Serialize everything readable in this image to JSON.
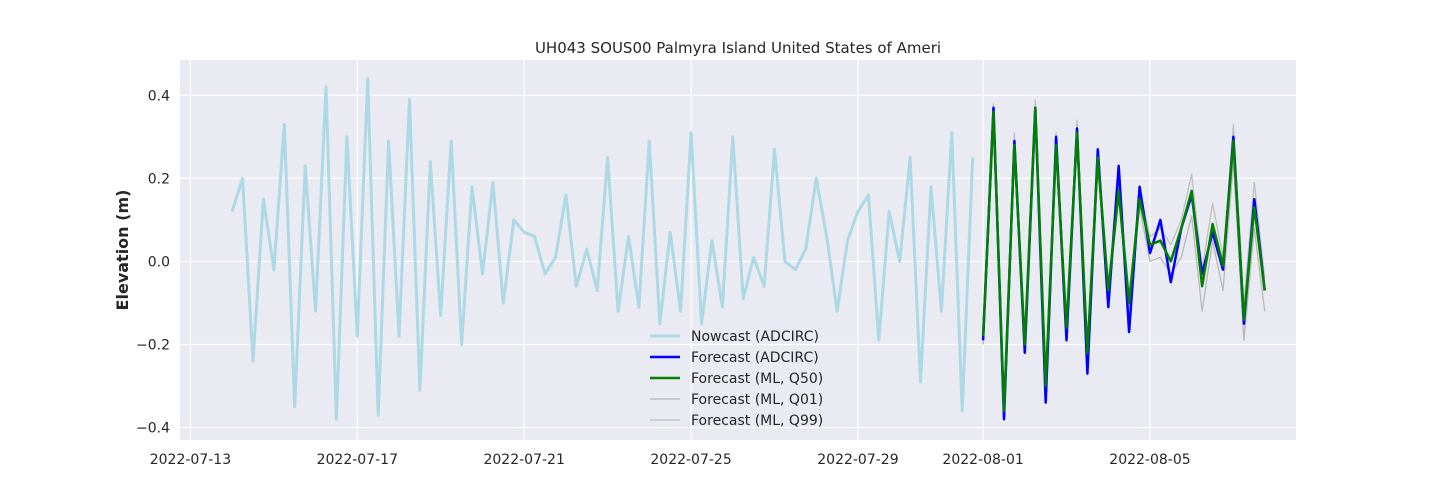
{
  "chart_data": {
    "type": "line",
    "title": "UH043 SOUS00 Palmyra Island United States of Ameri",
    "xlabel": "",
    "ylabel": "Elevation (m)",
    "xlim": [
      "2022-07-12T18:00",
      "2022-08-08T12:00"
    ],
    "ylim": [
      -0.43,
      0.485
    ],
    "x_ticks": [
      "2022-07-13",
      "2022-07-17",
      "2022-07-21",
      "2022-07-25",
      "2022-07-29",
      "2022-08-01",
      "2022-08-05"
    ],
    "y_ticks": [
      -0.4,
      -0.2,
      0.0,
      0.2,
      0.4
    ],
    "y_tick_labels": [
      "−0.4",
      "−0.2",
      "0.0",
      "0.2",
      "0.4"
    ],
    "grid": true,
    "legend_position": "lower center",
    "background": "#eaeaf2",
    "series": [
      {
        "name": "Nowcast (ADCIRC)",
        "color": "#add8e6",
        "x_start": "2022-07-14T00:00",
        "step_hours": 6,
        "values": [
          0.12,
          0.2,
          -0.24,
          0.15,
          -0.02,
          0.33,
          -0.35,
          0.23,
          -0.12,
          0.42,
          -0.38,
          0.3,
          -0.18,
          0.44,
          -0.37,
          0.29,
          -0.18,
          0.39,
          -0.31,
          0.24,
          -0.13,
          0.29,
          -0.2,
          0.18,
          -0.03,
          0.19,
          -0.1,
          0.1,
          0.07,
          0.06,
          -0.03,
          0.01,
          0.16,
          -0.06,
          0.03,
          -0.07,
          0.25,
          -0.12,
          0.06,
          -0.11,
          0.29,
          -0.15,
          0.07,
          -0.12,
          0.31,
          -0.15,
          0.05,
          -0.11,
          0.3,
          -0.09,
          0.01,
          -0.06,
          0.27,
          0.0,
          -0.02,
          0.03,
          0.2,
          0.06,
          -0.12,
          0.05,
          0.12,
          0.16,
          -0.19,
          0.12,
          0.0,
          0.25,
          -0.29,
          0.18,
          -0.12,
          0.31,
          -0.36,
          0.25
        ]
      },
      {
        "name": "Forecast (ADCIRC)",
        "color": "#0000ff",
        "x_start": "2022-08-01T00:00",
        "step_hours": 6,
        "values": [
          -0.19,
          0.37,
          -0.38,
          0.29,
          -0.22,
          0.37,
          -0.34,
          0.3,
          -0.19,
          0.32,
          -0.27,
          0.27,
          -0.11,
          0.23,
          -0.17,
          0.18,
          0.02,
          0.1,
          -0.05,
          0.08,
          0.16,
          -0.03,
          0.07,
          -0.02,
          0.3,
          -0.15,
          0.15,
          -0.07
        ]
      },
      {
        "name": "Forecast (ML, Q50)",
        "color": "#008000",
        "x_start": "2022-08-01T00:00",
        "step_hours": 6,
        "values": [
          -0.18,
          0.36,
          -0.36,
          0.28,
          -0.2,
          0.37,
          -0.3,
          0.28,
          -0.16,
          0.31,
          -0.22,
          0.25,
          -0.07,
          0.17,
          -0.1,
          0.15,
          0.04,
          0.05,
          0.0,
          0.08,
          0.17,
          -0.06,
          0.09,
          -0.01,
          0.29,
          -0.14,
          0.13,
          -0.07
        ]
      },
      {
        "name": "Forecast (ML, Q01)",
        "color": "#b8b8b8",
        "x_start": "2022-08-01T00:00",
        "step_hours": 6,
        "values": [
          -0.2,
          0.35,
          -0.37,
          0.26,
          -0.21,
          0.36,
          -0.32,
          0.26,
          -0.17,
          0.29,
          -0.24,
          0.23,
          -0.09,
          0.15,
          -0.12,
          0.13,
          0.0,
          0.01,
          -0.03,
          0.01,
          0.11,
          -0.12,
          0.05,
          -0.07,
          0.24,
          -0.19,
          0.08,
          -0.12
        ]
      },
      {
        "name": "Forecast (ML, Q99)",
        "color": "#c0c0c0",
        "x_start": "2022-08-01T00:00",
        "step_hours": 6,
        "values": [
          -0.16,
          0.38,
          -0.35,
          0.31,
          -0.19,
          0.39,
          -0.28,
          0.31,
          -0.15,
          0.34,
          -0.2,
          0.27,
          -0.05,
          0.19,
          -0.08,
          0.17,
          0.06,
          0.08,
          0.04,
          0.1,
          0.21,
          -0.02,
          0.14,
          0.01,
          0.33,
          -0.1,
          0.19,
          -0.04
        ]
      }
    ]
  }
}
